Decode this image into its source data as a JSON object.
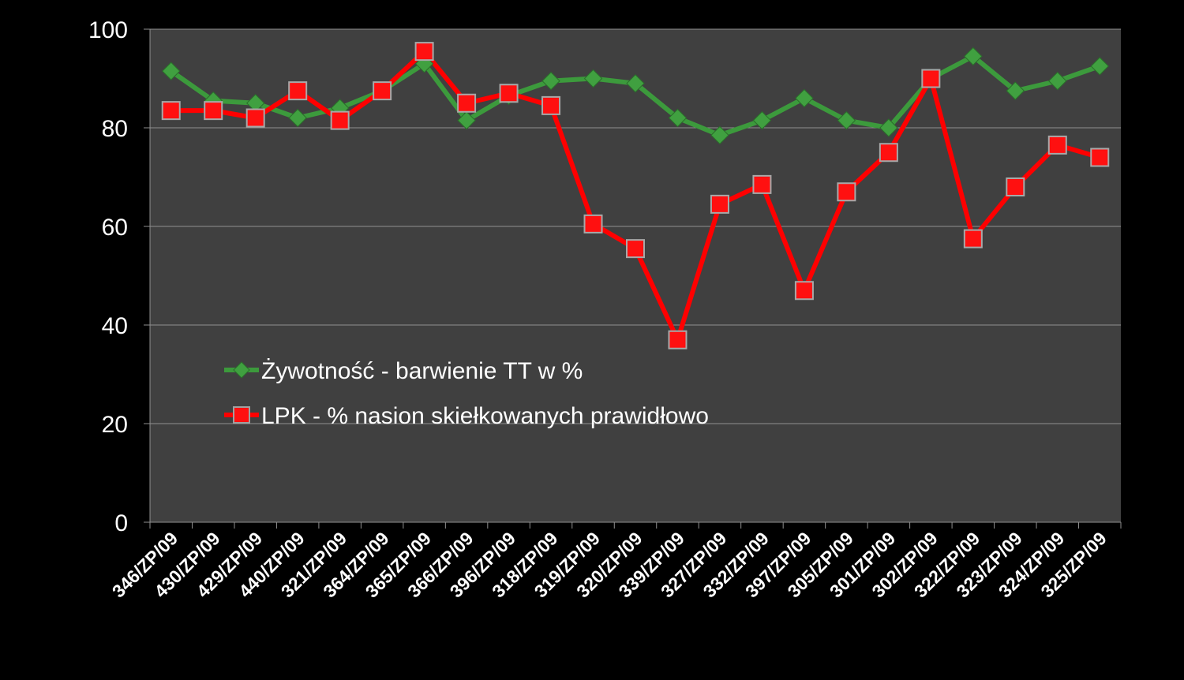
{
  "chart_data": {
    "type": "line",
    "categories": [
      "346/ZP/09",
      "430/ZP/09",
      "429/ZP/09",
      "440/ZP/09",
      "321/ZP/09",
      "364/ZP/09",
      "365/ZP/09",
      "366/ZP/09",
      "396/ZP/09",
      "318/ZP/09",
      "319/ZP/09",
      "320/ZP/09",
      "339/ZP/09",
      "327/ZP/09",
      "332/ZP/09",
      "397/ZP/09",
      "305/ZP/09",
      "301/ZP/09",
      "302/ZP/09",
      "322/ZP/09",
      "323/ZP/09",
      "324/ZP/09",
      "325/ZP/09"
    ],
    "series": [
      {
        "name": "Żywotność - barwienie TT w %",
        "color": "#3c9a3c",
        "marker": "diamond",
        "values": [
          91.5,
          85.5,
          85,
          82,
          84,
          87.5,
          93,
          81.5,
          86.5,
          89.5,
          90,
          89,
          82,
          78.5,
          81.5,
          86,
          81.5,
          80,
          90,
          94.5,
          87.5,
          89.5,
          92.5
        ]
      },
      {
        "name": "LPK - % nasion skiełkowanych prawidłowo",
        "color": "#ff0000",
        "marker": "square",
        "values": [
          83.5,
          83.5,
          82,
          87.5,
          81.5,
          87.5,
          95.5,
          85,
          87,
          84.5,
          60.5,
          55.5,
          37,
          64.5,
          68.5,
          47,
          67,
          75,
          90,
          57.5,
          68,
          76.5,
          74
        ]
      }
    ],
    "yticks": [
      "0",
      "20",
      "40",
      "60",
      "80",
      "100"
    ],
    "ylim": [
      0,
      100
    ],
    "grid": true,
    "legend": "inside-center-left",
    "plot_background": "#404040"
  }
}
